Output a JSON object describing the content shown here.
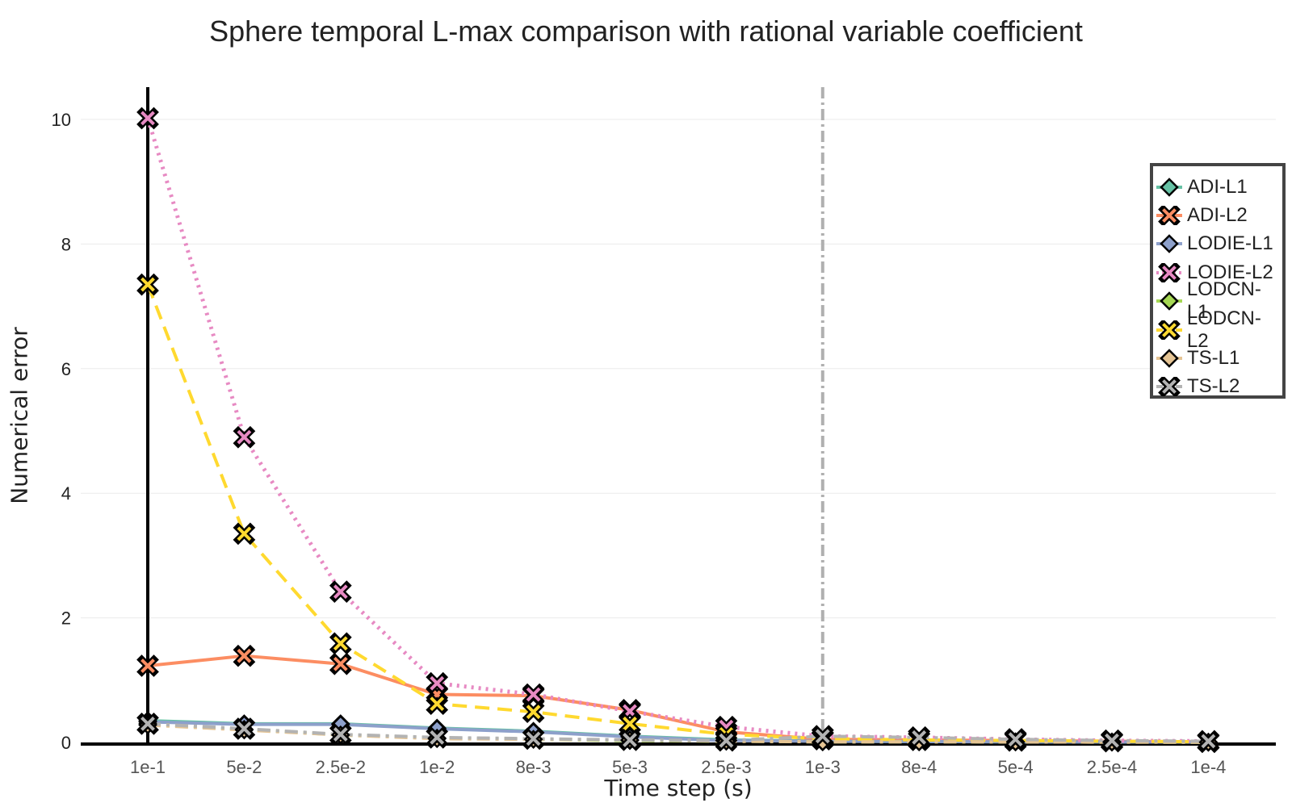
{
  "chart_data": {
    "type": "line",
    "title": "Sphere temporal L-max comparison with rational variable coefficient",
    "xlabel": "Time step (s)",
    "ylabel": "Numerical error",
    "categories": [
      "1e-1",
      "5e-2",
      "2.5e-2",
      "1e-2",
      "8e-3",
      "5e-3",
      "2.5e-3",
      "1e-3",
      "8e-4",
      "5e-4",
      "2.5e-4",
      "1e-4"
    ],
    "ylim": [
      0,
      10.5
    ],
    "yticks": [
      0,
      2,
      4,
      6,
      8,
      10
    ],
    "grid": true,
    "legend_position": "top-right",
    "reference_line": {
      "category": "1e-3",
      "style": "dash-dot",
      "color": "#b0b0b0"
    },
    "series": [
      {
        "name": "ADI-L1",
        "marker": "diamond",
        "dash": "solid",
        "color": "#66c2a5",
        "values": [
          0.35,
          0.3,
          0.3,
          0.23,
          0.18,
          0.1,
          0.04,
          0.02,
          0.015,
          0.01,
          0.008,
          0.005
        ]
      },
      {
        "name": "ADI-L2",
        "marker": "x",
        "dash": "solid",
        "color": "#fc8d62",
        "values": [
          1.23,
          1.39,
          1.26,
          0.77,
          0.75,
          0.52,
          0.17,
          0.05,
          0.04,
          0.03,
          0.02,
          0.01
        ]
      },
      {
        "name": "LODIE-L1",
        "marker": "diamond",
        "dash": "solid",
        "color": "#8da0cb",
        "values": [
          0.33,
          0.29,
          0.29,
          0.22,
          0.17,
          0.09,
          0.03,
          0.02,
          0.015,
          0.01,
          0.008,
          0.005
        ]
      },
      {
        "name": "LODIE-L2",
        "marker": "x",
        "dash": "dot",
        "color": "#e78ac3",
        "values": [
          10.02,
          4.9,
          2.42,
          0.95,
          0.77,
          0.5,
          0.25,
          0.1,
          0.08,
          0.05,
          0.03,
          0.02
        ]
      },
      {
        "name": "LODCN-L1",
        "marker": "diamond",
        "dash": "dashdot",
        "color": "#a6d854",
        "values": [
          0.3,
          0.21,
          0.12,
          0.07,
          0.05,
          0.03,
          0.02,
          0.01,
          0.01,
          0.008,
          0.005,
          0.003
        ]
      },
      {
        "name": "LODCN-L2",
        "marker": "x",
        "dash": "dash",
        "color": "#ffd92f",
        "values": [
          7.35,
          3.35,
          1.59,
          0.62,
          0.49,
          0.3,
          0.13,
          0.06,
          0.04,
          0.03,
          0.02,
          0.01
        ]
      },
      {
        "name": "TS-L1",
        "marker": "diamond",
        "dash": "dashdot",
        "color": "#e5c494",
        "values": [
          0.28,
          0.2,
          0.12,
          0.06,
          0.05,
          0.04,
          0.02,
          0.01,
          0.01,
          0.008,
          0.005,
          0.003
        ]
      },
      {
        "name": "TS-L2",
        "marker": "x",
        "dash": "dashdot",
        "color": "#b3b3b3",
        "values": [
          0.3,
          0.22,
          0.13,
          0.08,
          0.06,
          0.04,
          0.03,
          0.1,
          0.08,
          0.05,
          0.03,
          0.02
        ]
      }
    ]
  }
}
